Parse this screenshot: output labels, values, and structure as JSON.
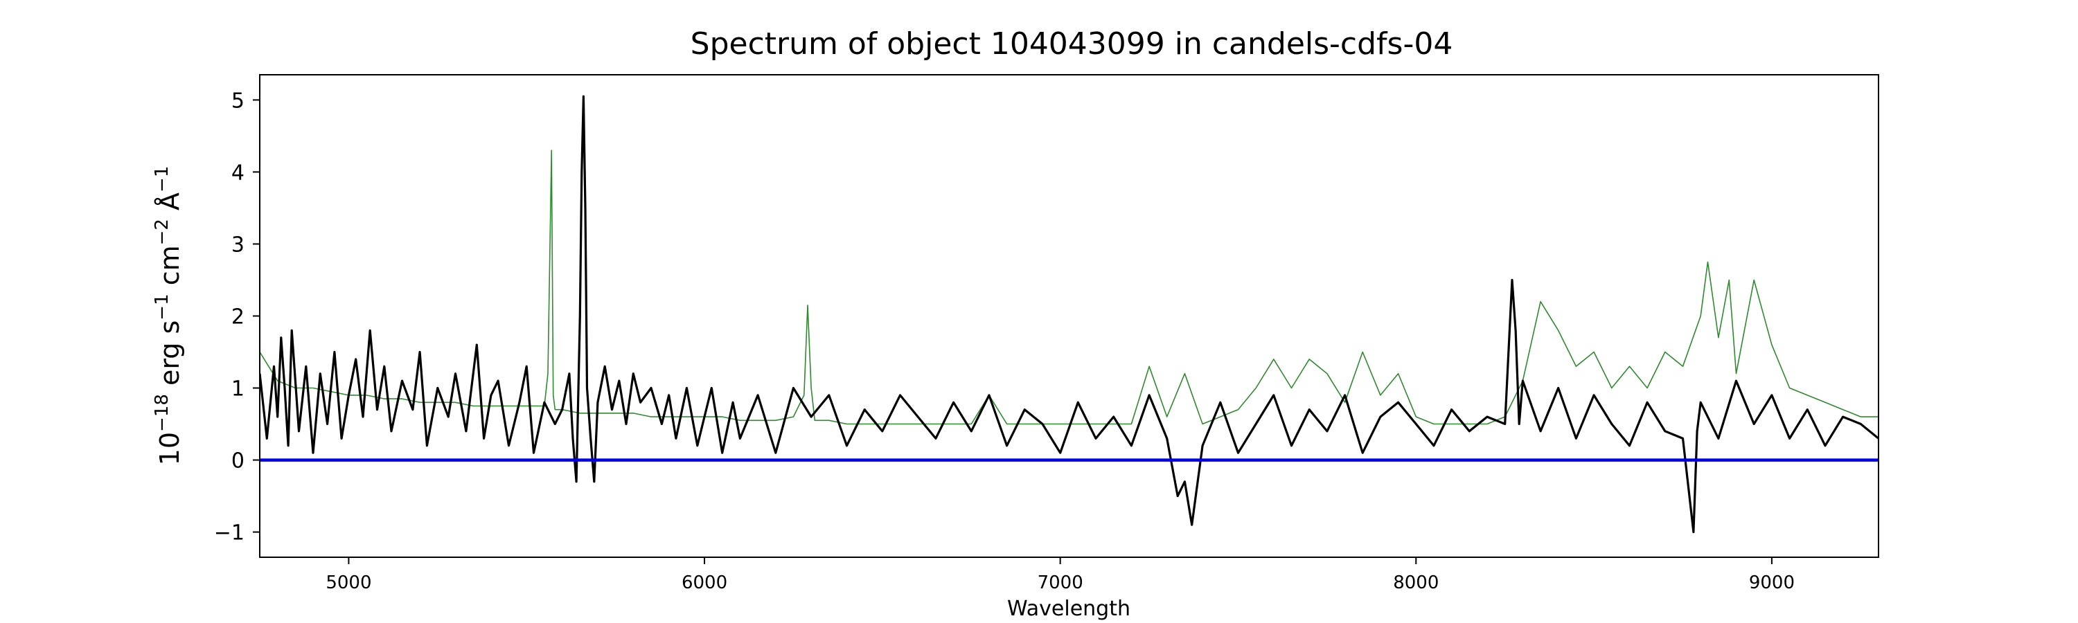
{
  "chart_data": {
    "type": "line",
    "title": "Spectrum of object 104043099 in candels-cdfs-04",
    "xlabel": "Wavelength",
    "ylabel_parts": {
      "prefix": "10",
      "exp1": "−18",
      "mid1": " erg s",
      "exp2": "−1",
      "mid2": " cm",
      "exp3": "−2",
      "mid3": " Å",
      "exp4": "−1"
    },
    "xlim": [
      4750,
      9300
    ],
    "ylim": [
      -1.35,
      5.35
    ],
    "xticks": [
      5000,
      6000,
      7000,
      8000,
      9000
    ],
    "yticks": [
      -1,
      0,
      1,
      2,
      3,
      4,
      5
    ],
    "ytick_labels": [
      "−1",
      "0",
      "1",
      "2",
      "3",
      "4",
      "5"
    ],
    "grid": false,
    "legend": "none",
    "series": [
      {
        "role": "spectrum",
        "color": "#000000",
        "x": [
          4750,
          4770,
          4790,
          4800,
          4810,
          4820,
          4830,
          4840,
          4850,
          4860,
          4880,
          4900,
          4920,
          4940,
          4960,
          4980,
          5000,
          5020,
          5040,
          5060,
          5080,
          5100,
          5120,
          5150,
          5180,
          5200,
          5220,
          5250,
          5280,
          5300,
          5330,
          5360,
          5380,
          5400,
          5420,
          5450,
          5480,
          5500,
          5520,
          5550,
          5580,
          5600,
          5620,
          5630,
          5640,
          5650,
          5655,
          5660,
          5665,
          5670,
          5680,
          5690,
          5700,
          5720,
          5740,
          5760,
          5780,
          5800,
          5820,
          5850,
          5880,
          5900,
          5920,
          5950,
          5980,
          6000,
          6020,
          6050,
          6080,
          6100,
          6150,
          6200,
          6250,
          6300,
          6350,
          6400,
          6450,
          6500,
          6550,
          6600,
          6650,
          6700,
          6750,
          6800,
          6850,
          6900,
          6950,
          7000,
          7050,
          7100,
          7150,
          7200,
          7250,
          7300,
          7330,
          7350,
          7370,
          7400,
          7450,
          7500,
          7550,
          7600,
          7650,
          7700,
          7750,
          7800,
          7850,
          7900,
          7950,
          8000,
          8050,
          8100,
          8150,
          8200,
          8250,
          8270,
          8280,
          8290,
          8300,
          8350,
          8400,
          8450,
          8500,
          8550,
          8600,
          8650,
          8700,
          8750,
          8780,
          8790,
          8800,
          8850,
          8900,
          8950,
          9000,
          9050,
          9100,
          9150,
          9200,
          9250,
          9300
        ],
        "y": [
          1.2,
          0.3,
          1.3,
          0.6,
          1.7,
          1.0,
          0.2,
          1.8,
          1.1,
          0.4,
          1.3,
          0.1,
          1.2,
          0.5,
          1.5,
          0.3,
          0.9,
          1.4,
          0.6,
          1.8,
          0.7,
          1.3,
          0.4,
          1.1,
          0.7,
          1.5,
          0.2,
          1.0,
          0.6,
          1.2,
          0.4,
          1.6,
          0.3,
          0.9,
          1.1,
          0.2,
          0.8,
          1.3,
          0.1,
          0.8,
          0.5,
          0.7,
          1.2,
          0.3,
          -0.3,
          2.0,
          4.0,
          5.05,
          3.5,
          1.0,
          0.3,
          -0.3,
          0.8,
          1.3,
          0.7,
          1.1,
          0.5,
          1.2,
          0.8,
          1.0,
          0.5,
          0.9,
          0.3,
          1.0,
          0.2,
          0.6,
          1.0,
          0.1,
          0.8,
          0.3,
          0.9,
          0.1,
          1.0,
          0.6,
          0.9,
          0.2,
          0.7,
          0.4,
          0.9,
          0.6,
          0.3,
          0.8,
          0.4,
          0.9,
          0.2,
          0.7,
          0.5,
          0.1,
          0.8,
          0.3,
          0.6,
          0.2,
          0.9,
          0.3,
          -0.5,
          -0.3,
          -0.9,
          0.2,
          0.8,
          0.1,
          0.5,
          0.9,
          0.2,
          0.7,
          0.4,
          0.9,
          0.1,
          0.6,
          0.8,
          0.5,
          0.2,
          0.7,
          0.4,
          0.6,
          0.5,
          2.5,
          1.8,
          0.5,
          1.1,
          0.4,
          1.0,
          0.3,
          0.9,
          0.5,
          0.2,
          0.8,
          0.4,
          0.3,
          -1.0,
          0.4,
          0.8,
          0.3,
          1.1,
          0.5,
          0.9,
          0.3,
          0.7,
          0.2,
          0.6,
          0.5,
          0.3
        ]
      },
      {
        "role": "model",
        "color": "#2e8b2e",
        "x": [
          4750,
          4800,
          4850,
          4900,
          4950,
          5000,
          5050,
          5100,
          5150,
          5200,
          5250,
          5300,
          5350,
          5400,
          5450,
          5500,
          5550,
          5560,
          5570,
          5575,
          5580,
          5590,
          5600,
          5650,
          5700,
          5750,
          5800,
          5850,
          5900,
          5950,
          6000,
          6050,
          6100,
          6150,
          6200,
          6250,
          6280,
          6290,
          6300,
          6310,
          6320,
          6350,
          6400,
          6450,
          6500,
          6550,
          6600,
          6650,
          6700,
          6750,
          6800,
          6850,
          6900,
          6950,
          7000,
          7050,
          7100,
          7150,
          7200,
          7250,
          7300,
          7350,
          7400,
          7450,
          7500,
          7550,
          7600,
          7650,
          7700,
          7750,
          7800,
          7850,
          7900,
          7950,
          8000,
          8050,
          8100,
          8150,
          8200,
          8250,
          8300,
          8350,
          8400,
          8450,
          8500,
          8550,
          8600,
          8650,
          8700,
          8750,
          8800,
          8820,
          8850,
          8880,
          8900,
          8950,
          9000,
          9050,
          9100,
          9150,
          9200,
          9250,
          9300
        ],
        "y": [
          1.5,
          1.1,
          1.0,
          1.0,
          0.95,
          0.9,
          0.9,
          0.85,
          0.85,
          0.8,
          0.8,
          0.8,
          0.75,
          0.75,
          0.75,
          0.75,
          0.75,
          1.2,
          4.3,
          0.9,
          0.7,
          0.7,
          0.7,
          0.65,
          0.65,
          0.65,
          0.65,
          0.6,
          0.6,
          0.6,
          0.6,
          0.6,
          0.55,
          0.55,
          0.55,
          0.6,
          0.9,
          2.15,
          1.0,
          0.55,
          0.55,
          0.55,
          0.5,
          0.5,
          0.5,
          0.5,
          0.5,
          0.5,
          0.5,
          0.5,
          0.9,
          0.5,
          0.5,
          0.5,
          0.5,
          0.5,
          0.5,
          0.5,
          0.5,
          1.3,
          0.6,
          1.2,
          0.5,
          0.6,
          0.7,
          1.0,
          1.4,
          1.0,
          1.4,
          1.2,
          0.8,
          1.5,
          0.9,
          1.2,
          0.6,
          0.5,
          0.5,
          0.5,
          0.5,
          0.6,
          1.1,
          2.2,
          1.8,
          1.3,
          1.5,
          1.0,
          1.3,
          1.0,
          1.5,
          1.3,
          2.0,
          2.75,
          1.7,
          2.5,
          1.2,
          2.5,
          1.6,
          1.0,
          0.9,
          0.8,
          0.7,
          0.6,
          0.6
        ]
      },
      {
        "role": "zero",
        "color": "#0000ee",
        "x": [
          4750,
          9300
        ],
        "y": [
          0,
          0
        ]
      }
    ]
  }
}
